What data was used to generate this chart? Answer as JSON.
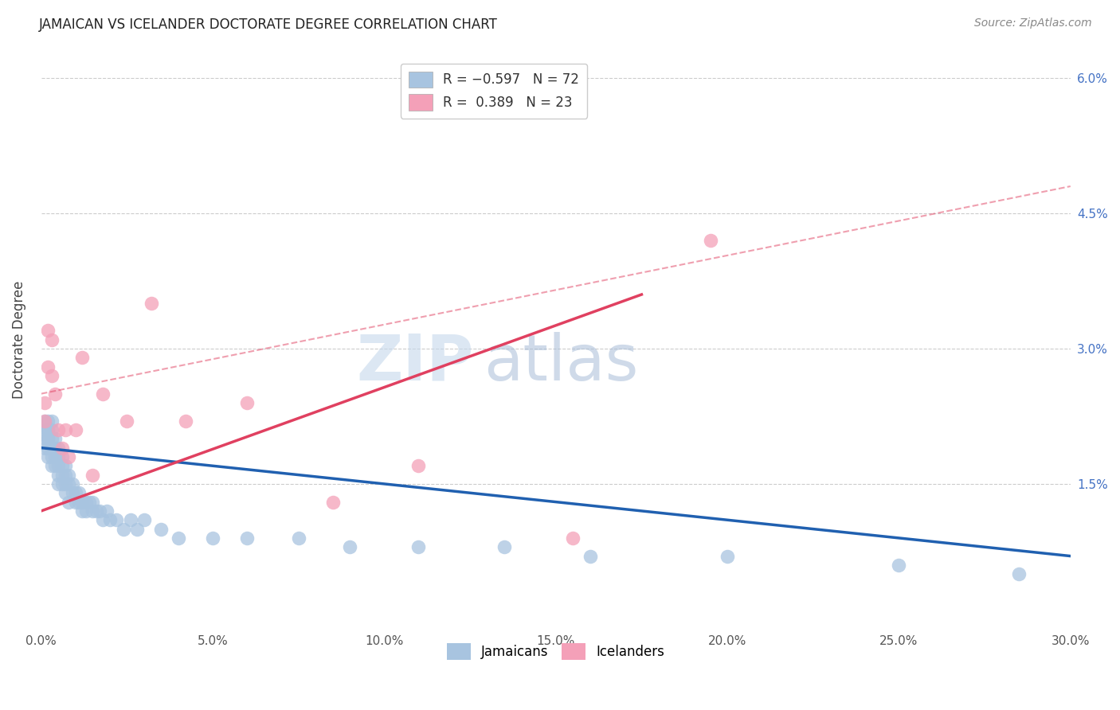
{
  "title": "JAMAICAN VS ICELANDER DOCTORATE DEGREE CORRELATION CHART",
  "source": "Source: ZipAtlas.com",
  "ylabel_label": "Doctorate Degree",
  "xlim": [
    0.0,
    0.3
  ],
  "ylim": [
    -0.001,
    0.063
  ],
  "blue_color": "#a8c4e0",
  "pink_color": "#f4a0b8",
  "blue_line_color": "#2060b0",
  "pink_line_color": "#e04060",
  "watermark_zip": "ZIP",
  "watermark_atlas": "atlas",
  "jamaicans_x": [
    0.001,
    0.001,
    0.001,
    0.001,
    0.002,
    0.002,
    0.002,
    0.002,
    0.002,
    0.002,
    0.002,
    0.003,
    0.003,
    0.003,
    0.003,
    0.003,
    0.003,
    0.004,
    0.004,
    0.004,
    0.004,
    0.005,
    0.005,
    0.005,
    0.005,
    0.005,
    0.006,
    0.006,
    0.006,
    0.006,
    0.007,
    0.007,
    0.007,
    0.007,
    0.008,
    0.008,
    0.008,
    0.009,
    0.009,
    0.01,
    0.01,
    0.011,
    0.011,
    0.012,
    0.012,
    0.013,
    0.013,
    0.014,
    0.015,
    0.015,
    0.016,
    0.017,
    0.018,
    0.019,
    0.02,
    0.022,
    0.024,
    0.026,
    0.028,
    0.03,
    0.035,
    0.04,
    0.05,
    0.06,
    0.075,
    0.09,
    0.11,
    0.135,
    0.16,
    0.2,
    0.25,
    0.285
  ],
  "jamaicans_y": [
    0.02,
    0.021,
    0.022,
    0.019,
    0.02,
    0.021,
    0.019,
    0.022,
    0.018,
    0.02,
    0.021,
    0.019,
    0.02,
    0.018,
    0.021,
    0.017,
    0.022,
    0.018,
    0.019,
    0.017,
    0.02,
    0.017,
    0.018,
    0.016,
    0.019,
    0.015,
    0.016,
    0.017,
    0.015,
    0.018,
    0.016,
    0.014,
    0.015,
    0.017,
    0.013,
    0.015,
    0.016,
    0.014,
    0.015,
    0.013,
    0.014,
    0.013,
    0.014,
    0.012,
    0.013,
    0.013,
    0.012,
    0.013,
    0.012,
    0.013,
    0.012,
    0.012,
    0.011,
    0.012,
    0.011,
    0.011,
    0.01,
    0.011,
    0.01,
    0.011,
    0.01,
    0.009,
    0.009,
    0.009,
    0.009,
    0.008,
    0.008,
    0.008,
    0.007,
    0.007,
    0.006,
    0.005
  ],
  "icelanders_x": [
    0.001,
    0.001,
    0.002,
    0.002,
    0.003,
    0.003,
    0.004,
    0.005,
    0.006,
    0.007,
    0.008,
    0.01,
    0.012,
    0.015,
    0.018,
    0.025,
    0.032,
    0.042,
    0.06,
    0.085,
    0.11,
    0.155,
    0.195
  ],
  "icelanders_y": [
    0.024,
    0.022,
    0.032,
    0.028,
    0.031,
    0.027,
    0.025,
    0.021,
    0.019,
    0.021,
    0.018,
    0.021,
    0.029,
    0.016,
    0.025,
    0.022,
    0.035,
    0.022,
    0.024,
    0.013,
    0.017,
    0.009,
    0.042
  ],
  "blue_trend": [
    0.0,
    0.3,
    0.019,
    0.007
  ],
  "pink_solid_trend": [
    0.0,
    0.175,
    0.012,
    0.036
  ],
  "pink_dashed_trend": [
    0.0,
    0.3,
    0.025,
    0.048
  ]
}
